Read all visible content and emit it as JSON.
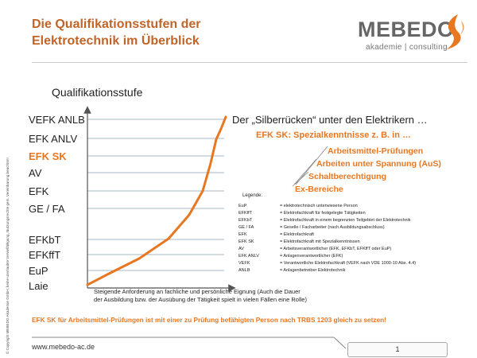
{
  "title": {
    "line1": "Die Qualifikationsstufen der",
    "line2": "Elektrotechnik im Überblick"
  },
  "logo": {
    "name": "MEBEDO",
    "subtitle": "akademie | consulting",
    "icon": "mebedo-logo-icon"
  },
  "copyright": "© Copyright MEBEDO Akademie GmbH, keine unerlaubte Vervielfältigung, Nutzungsrechte gem. Vereinbarung beachten!",
  "section_label": "Qualifikationsstufe",
  "levels": [
    "VEFK ANLB",
    "EFK ANLV",
    "EFK SK",
    "AV",
    "EFK",
    "GE / FA",
    "EFKbT",
    "EFKffT",
    "EuP",
    "Laie"
  ],
  "headline": "Der „Silberrücken“ unter den Elektrikern …",
  "subhead": "EFK SK: Spezialkenntnisse z. B. in …",
  "branches": [
    "Arbeitsmittel-Prüfungen",
    "Arbeiten unter Spannung (AuS)",
    "Schaltberechtigung",
    "Ex-Bereiche"
  ],
  "legend": {
    "title": "Legende:",
    "rows": [
      {
        "k": "EuP",
        "v": "= elektrotechnisch  unterwiesene Person"
      },
      {
        "k": "EFKffT",
        "v": "= Elektrofachkraft  für festgelegte Tätigkeiten"
      },
      {
        "k": "EFKbT",
        "v": "= Elektrofachkraft  in einem  begrenzten  Teilgebiet  der Elektrotechnik"
      },
      {
        "k": "GE  /  FA",
        "v": "= Geselle  /  Facharbeiter  (nach Ausbildungsabschluss)"
      },
      {
        "k": "EFK",
        "v": "= Elektrofachkraft"
      },
      {
        "k": "EFK  SK",
        "v": "= Elektrofachkraft  mit Spezialkenntnissen"
      },
      {
        "k": "AV",
        "v": "= Arbeitsverantwortlicher  (EFK,  EFKbT,  EFKffT  oder EuP)"
      },
      {
        "k": "EFK  ANLV",
        "v": "= Anlagenverantwortlicher  (EFK)"
      },
      {
        "k": "VEFK",
        "v": "= Verantwortliche Elektrofachkraft  (VEFK  nach VDE  1000-10  Abs. 4.4)"
      },
      {
        "k": "ANLB",
        "v": "= Anlagenbetreiber  Elektrotechnik"
      }
    ]
  },
  "caption": "Steigende Anforderung an fachliche und persönliche Eignung (Auch die Dauer der Ausbildung bzw. der Ausübung der Tätigkeit spielt in vielen Fällen eine Rolle)",
  "bottom_note": "EFK SK für Arbeitsmittel-Prüfungen ist mit einer zu Prüfung befähigten Person nach TRBS 1203 gleich zu setzen!",
  "footer": {
    "url": "www.mebedo-ac.de",
    "page": "1"
  },
  "colors": {
    "accent": "#e87722",
    "title": "#c0652a",
    "logo_grey": "#666666",
    "curve": "#e87722"
  }
}
